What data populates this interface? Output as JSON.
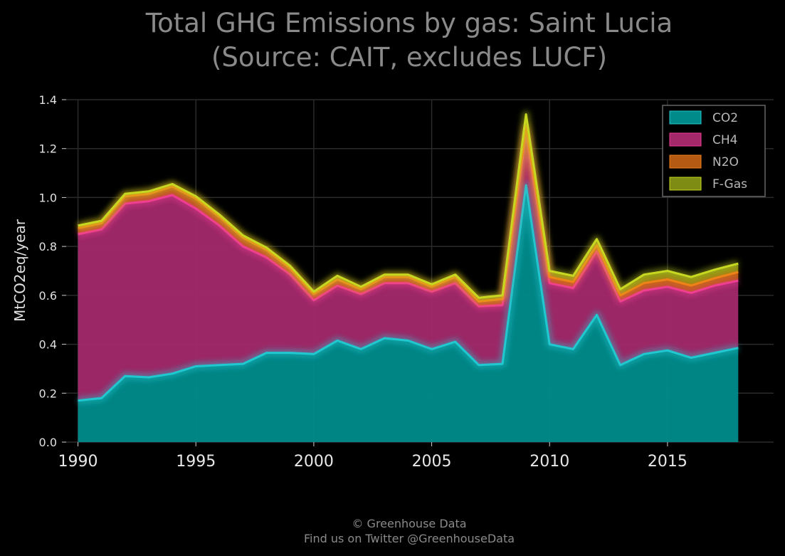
{
  "chart_data": {
    "type": "area",
    "stacked": true,
    "title": "Total GHG Emissions by gas: Saint Lucia",
    "subtitle": "(Source: CAIT, excludes LUCF)",
    "xlabel": "",
    "ylabel": "MtCO2eq/year",
    "xlim": [
      1989.5,
      2019.5
    ],
    "ylim": [
      0,
      1.4
    ],
    "x_ticks": [
      1990,
      1995,
      2000,
      2005,
      2010,
      2015
    ],
    "y_ticks": [
      0.0,
      0.2,
      0.4,
      0.6,
      0.8,
      1.0,
      1.2,
      1.4
    ],
    "grid": true,
    "legend_position": "top-right",
    "x": [
      1990,
      1991,
      1992,
      1993,
      1994,
      1995,
      1996,
      1997,
      1998,
      1999,
      2000,
      2001,
      2002,
      2003,
      2004,
      2005,
      2006,
      2007,
      2008,
      2009,
      2010,
      2011,
      2012,
      2013,
      2014,
      2015,
      2016,
      2017,
      2018
    ],
    "series": [
      {
        "name": "CO2",
        "color": "#008b8b",
        "line_color": "#20c8d0",
        "values": [
          0.17,
          0.18,
          0.27,
          0.265,
          0.28,
          0.31,
          0.315,
          0.32,
          0.365,
          0.365,
          0.36,
          0.415,
          0.38,
          0.425,
          0.415,
          0.38,
          0.41,
          0.315,
          0.32,
          1.05,
          0.4,
          0.38,
          0.52,
          0.315,
          0.36,
          0.375,
          0.345,
          0.365,
          0.385
        ]
      },
      {
        "name": "CH4",
        "color": "#a3296b",
        "line_color": "#f03c96",
        "values": [
          0.68,
          0.69,
          0.705,
          0.72,
          0.73,
          0.645,
          0.57,
          0.48,
          0.39,
          0.32,
          0.22,
          0.225,
          0.225,
          0.225,
          0.235,
          0.235,
          0.24,
          0.24,
          0.24,
          0.21,
          0.25,
          0.25,
          0.26,
          0.26,
          0.26,
          0.26,
          0.265,
          0.275,
          0.275
        ]
      },
      {
        "name": "N2O",
        "color": "#b45a12",
        "line_color": "#f08018",
        "values": [
          0.025,
          0.025,
          0.03,
          0.03,
          0.035,
          0.04,
          0.035,
          0.035,
          0.03,
          0.025,
          0.025,
          0.025,
          0.02,
          0.025,
          0.025,
          0.02,
          0.025,
          0.02,
          0.025,
          0.03,
          0.025,
          0.025,
          0.025,
          0.025,
          0.03,
          0.03,
          0.03,
          0.03,
          0.035
        ]
      },
      {
        "name": "F-Gas",
        "color": "#7f8c14",
        "line_color": "#c8d820",
        "values": [
          0.01,
          0.01,
          0.01,
          0.01,
          0.01,
          0.01,
          0.01,
          0.01,
          0.01,
          0.01,
          0.01,
          0.015,
          0.01,
          0.01,
          0.01,
          0.01,
          0.01,
          0.015,
          0.015,
          0.05,
          0.025,
          0.025,
          0.025,
          0.025,
          0.035,
          0.035,
          0.035,
          0.035,
          0.035
        ]
      }
    ]
  },
  "footer": {
    "line1": "© Greenhouse Data",
    "line2": "Find us on Twitter @GreenhouseData"
  }
}
